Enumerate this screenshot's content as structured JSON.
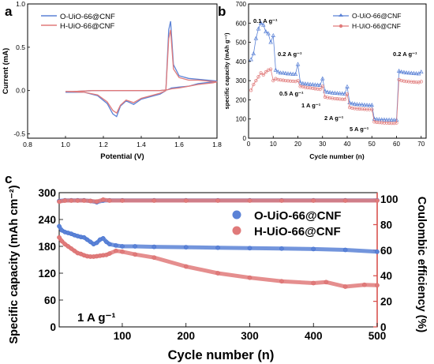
{
  "panels": {
    "a": "a",
    "b": "b",
    "c": "c"
  },
  "colors": {
    "O": "#5b82d6",
    "H": "#e07a7a",
    "O_dark": "#3f6fd0",
    "H_dark": "#d76a6a",
    "ce_axis": "#d9534f"
  },
  "chart_data": [
    {
      "id": "a",
      "type": "line",
      "xlabel": "Potential (V)",
      "ylabel": "Current (mA)",
      "xlim": [
        0.8,
        1.8
      ],
      "ylim": [
        -0.55,
        1.0
      ],
      "xticks": [
        "0.8",
        "1.0",
        "1.2",
        "1.4",
        "1.6",
        "1.8"
      ],
      "yticks": [
        "-0.5",
        "0.0",
        "0.5",
        "1.0"
      ],
      "legend": [
        "O-UiO-66@CNF",
        "H-UiO-66@CNF"
      ],
      "series": [
        {
          "name": "O-UiO-66@CNF",
          "x": [
            1.0,
            1.1,
            1.17,
            1.22,
            1.25,
            1.27,
            1.29,
            1.32,
            1.36,
            1.4,
            1.45,
            1.5,
            1.53,
            1.545,
            1.555,
            1.57,
            1.6,
            1.65,
            1.7,
            1.8,
            1.78,
            1.7,
            1.65,
            1.6,
            1.56,
            1.54,
            1.5,
            1.45,
            1.4,
            1.35,
            1.25,
            1.15,
            1.05,
            1.0
          ],
          "y": [
            -0.02,
            -0.02,
            -0.06,
            -0.15,
            -0.27,
            -0.3,
            -0.18,
            -0.12,
            -0.16,
            -0.1,
            -0.07,
            -0.04,
            0.0,
            0.7,
            0.8,
            0.3,
            0.17,
            0.14,
            0.13,
            0.11,
            0.1,
            0.08,
            0.05,
            0.04,
            0.03,
            0.01,
            0.0,
            0.0,
            0.0,
            0.0,
            0.0,
            0.0,
            -0.01,
            -0.02
          ]
        },
        {
          "name": "H-UiO-66@CNF",
          "x": [
            1.0,
            1.1,
            1.17,
            1.22,
            1.25,
            1.27,
            1.29,
            1.32,
            1.36,
            1.4,
            1.45,
            1.5,
            1.53,
            1.545,
            1.555,
            1.57,
            1.6,
            1.65,
            1.7,
            1.8,
            1.78,
            1.7,
            1.65,
            1.6,
            1.56,
            1.54,
            1.5,
            1.45,
            1.4,
            1.35,
            1.25,
            1.15,
            1.05,
            1.0
          ],
          "y": [
            -0.01,
            -0.02,
            -0.05,
            -0.13,
            -0.23,
            -0.26,
            -0.17,
            -0.11,
            -0.14,
            -0.09,
            -0.06,
            -0.03,
            0.0,
            0.6,
            0.7,
            0.25,
            0.15,
            0.12,
            0.12,
            0.1,
            0.09,
            0.07,
            0.05,
            0.03,
            0.02,
            0.01,
            0.0,
            0.0,
            0.0,
            0.0,
            0.0,
            0.0,
            -0.01,
            -0.01
          ]
        }
      ]
    },
    {
      "id": "b",
      "type": "scatter",
      "xlabel": "Cycle number (n)",
      "ylabel": "specific capacity (mAh g⁻¹)",
      "xlim": [
        0,
        72
      ],
      "ylim": [
        0,
        700
      ],
      "xticks": [
        "0",
        "10",
        "20",
        "30",
        "40",
        "50",
        "60",
        "70"
      ],
      "yticks": [
        "0",
        "100",
        "200",
        "300",
        "400",
        "500",
        "600",
        "700"
      ],
      "legend": [
        "O-UiO-66@CNF",
        "H-UiO-66@CNF"
      ],
      "annotations": [
        "0.1 A g⁻¹",
        "0.2 A g⁻¹",
        "0.5 A g⁻¹",
        "1 A g⁻¹",
        "2 A g⁻¹",
        "5 A g⁻¹",
        "0.2 A g⁻¹"
      ],
      "series": [
        {
          "name": "O-UiO-66@CNF",
          "x": [
            1,
            2,
            3,
            4,
            5,
            6,
            7,
            8,
            9,
            10,
            11,
            12,
            13,
            14,
            15,
            16,
            17,
            18,
            19,
            20,
            21,
            22,
            23,
            24,
            25,
            26,
            27,
            28,
            29,
            30,
            31,
            32,
            33,
            34,
            35,
            36,
            37,
            38,
            39,
            40,
            41,
            42,
            43,
            44,
            45,
            46,
            47,
            48,
            49,
            50,
            51,
            52,
            53,
            54,
            55,
            56,
            57,
            58,
            59,
            60,
            61,
            62,
            63,
            64,
            65,
            66,
            67,
            68,
            69,
            70
          ],
          "y": [
            410,
            440,
            520,
            570,
            600,
            590,
            555,
            545,
            500,
            535,
            355,
            345,
            340,
            340,
            338,
            336,
            335,
            334,
            333,
            385,
            290,
            285,
            283,
            282,
            280,
            279,
            278,
            277,
            276,
            310,
            245,
            240,
            238,
            236,
            235,
            234,
            233,
            232,
            231,
            268,
            185,
            180,
            178,
            176,
            175,
            174,
            173,
            172,
            171,
            172,
            100,
            98,
            97,
            96,
            96,
            95,
            95,
            95,
            94,
            95,
            350,
            345,
            343,
            341,
            340,
            339,
            338,
            337,
            336,
            345
          ]
        },
        {
          "name": "H-UiO-66@CNF",
          "x": [
            1,
            2,
            3,
            4,
            5,
            6,
            7,
            8,
            9,
            10,
            11,
            12,
            13,
            14,
            15,
            16,
            17,
            18,
            19,
            20,
            21,
            22,
            23,
            24,
            25,
            26,
            27,
            28,
            29,
            30,
            31,
            32,
            33,
            34,
            35,
            36,
            37,
            38,
            39,
            40,
            41,
            42,
            43,
            44,
            45,
            46,
            47,
            48,
            49,
            50,
            51,
            52,
            53,
            54,
            55,
            56,
            57,
            58,
            59,
            60,
            61,
            62,
            63,
            64,
            65,
            66,
            67,
            68,
            69,
            70
          ],
          "y": [
            250,
            280,
            300,
            320,
            340,
            330,
            345,
            355,
            360,
            300,
            310,
            305,
            303,
            302,
            300,
            299,
            298,
            297,
            296,
            300,
            270,
            268,
            265,
            263,
            262,
            260,
            258,
            257,
            255,
            270,
            215,
            212,
            210,
            208,
            206,
            205,
            204,
            203,
            202,
            230,
            160,
            157,
            155,
            154,
            153,
            152,
            151,
            150,
            150,
            150,
            85,
            83,
            82,
            81,
            80,
            80,
            79,
            78,
            78,
            80,
            305,
            300,
            298,
            296,
            295,
            294,
            293,
            292,
            291,
            295
          ]
        }
      ]
    },
    {
      "id": "c",
      "type": "scatter",
      "xlabel": "Cycle number (n)",
      "ylabel": "Specific capacity (mAh cm⁻²)",
      "y2label": "Coulombic efficiency (%)",
      "xlim": [
        1,
        500
      ],
      "ylim": [
        0,
        300
      ],
      "y2lim": [
        0,
        105
      ],
      "xticks": [
        "100",
        "200",
        "300",
        "400",
        "500"
      ],
      "yticks": [
        "0",
        "60",
        "120",
        "180",
        "240",
        "300"
      ],
      "y2ticks": [
        "0",
        "20",
        "40",
        "60",
        "80",
        "100"
      ],
      "legend": [
        "O-UiO-66@CNF",
        "H-UiO-66@CNF"
      ],
      "annotation": "1 A g⁻¹",
      "series": [
        {
          "name": "O-UiO-66@CNF",
          "axis": "left",
          "x": [
            1,
            5,
            10,
            15,
            20,
            25,
            30,
            35,
            40,
            45,
            50,
            55,
            60,
            65,
            70,
            75,
            80,
            90,
            100,
            120,
            150,
            200,
            250,
            300,
            350,
            400,
            450,
            500
          ],
          "y": [
            225,
            216,
            212,
            210,
            208,
            205,
            203,
            201,
            200,
            195,
            190,
            185,
            188,
            195,
            198,
            190,
            185,
            182,
            180,
            180,
            179,
            178,
            177,
            176,
            175,
            174,
            172,
            168
          ]
        },
        {
          "name": "H-UiO-66@CNF",
          "axis": "left",
          "x": [
            1,
            5,
            10,
            15,
            20,
            25,
            30,
            35,
            40,
            45,
            50,
            55,
            60,
            65,
            70,
            75,
            80,
            90,
            100,
            120,
            150,
            200,
            250,
            300,
            350,
            400,
            420,
            450,
            480,
            500
          ],
          "y": [
            200,
            192,
            185,
            180,
            175,
            170,
            165,
            163,
            160,
            158,
            157,
            157,
            158,
            159,
            160,
            161,
            164,
            170,
            168,
            162,
            155,
            135,
            120,
            110,
            102,
            98,
            100,
            90,
            94,
            93
          ]
        },
        {
          "name": "O-UiO-66@CNF CE",
          "axis": "right",
          "x": [
            1,
            10,
            20,
            30,
            40,
            50,
            60,
            70,
            80,
            100,
            150,
            200,
            250,
            300,
            350,
            400,
            450,
            500
          ],
          "y": [
            98.5,
            99,
            99,
            99,
            99,
            98.5,
            97.5,
            98.8,
            99,
            99,
            99,
            99,
            99,
            99,
            99,
            99,
            99,
            99
          ]
        },
        {
          "name": "H-UiO-66@CNF CE",
          "axis": "right",
          "x": [
            1,
            10,
            20,
            30,
            40,
            50,
            60,
            70,
            80,
            100,
            150,
            200,
            250,
            300,
            350,
            400,
            450,
            500
          ],
          "y": [
            98,
            98.8,
            98.8,
            98.8,
            98.8,
            98.5,
            98,
            99.5,
            98.8,
            98.8,
            98.8,
            98.8,
            98.8,
            98.8,
            98.8,
            98.8,
            98.8,
            98.8
          ]
        }
      ]
    }
  ]
}
